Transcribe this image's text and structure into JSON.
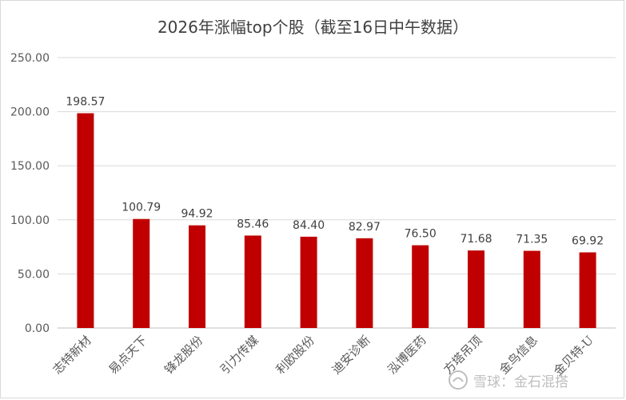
{
  "chart_data": {
    "type": "bar",
    "title": "2026年涨幅top个股（截至16日中午数据）",
    "categories": [
      "志特新材",
      "易点天下",
      "锋龙股份",
      "引力传媒",
      "利欧股份",
      "迪安诊断",
      "泓博医药",
      "方塔吊顶",
      "金鸟信息",
      "金贝特-U"
    ],
    "values": [
      198.57,
      100.79,
      94.92,
      85.46,
      84.4,
      82.97,
      76.5,
      71.68,
      71.35,
      69.92
    ],
    "data_labels": [
      "198.57",
      "100.79",
      "94.92",
      "85.46",
      "84.40",
      "82.97",
      "76.50",
      "71.68",
      "71.35",
      "69.92"
    ],
    "y_ticks": [
      "0.00",
      "50.00",
      "100.00",
      "150.00",
      "200.00",
      "250.00"
    ],
    "ylim": [
      0,
      250
    ],
    "xlabel": "",
    "ylabel": "",
    "grid": true,
    "bar_color": "#c00000"
  },
  "watermark": {
    "text": "雪球：金石混搭",
    "icon": "snowball-logo-icon"
  }
}
